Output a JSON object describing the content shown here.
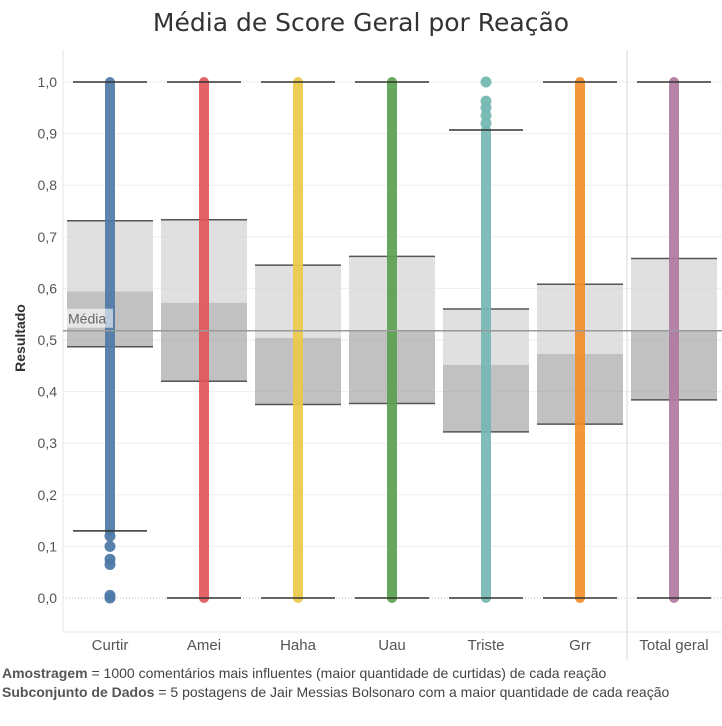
{
  "chart_data": {
    "type": "box",
    "title": "Média de Score Geral por Reação",
    "ylabel": "Resultado",
    "xlabel": "",
    "ylim": [
      0,
      1
    ],
    "y_ticks": [
      "0,0",
      "0,1",
      "0,2",
      "0,3",
      "0,4",
      "0,5",
      "0,6",
      "0,7",
      "0,8",
      "0,9",
      "1,0"
    ],
    "reference_line": {
      "label": "Média",
      "value": 0.518
    },
    "grid": true,
    "categories": [
      {
        "name": "Curtir",
        "color": "#4e79a7",
        "whisker_low": 0.13,
        "q1": 0.487,
        "median": 0.594,
        "q3": 0.731,
        "whisker_high": 1.0,
        "outliers": [
          0.0,
          0.005,
          0.065,
          0.075,
          0.1,
          0.12
        ]
      },
      {
        "name": "Amei",
        "color": "#e15759",
        "whisker_low": 0.0,
        "q1": 0.42,
        "median": 0.572,
        "q3": 0.733,
        "whisker_high": 1.0,
        "outliers": []
      },
      {
        "name": "Haha",
        "color": "#edc948",
        "whisker_low": 0.0,
        "q1": 0.375,
        "median": 0.504,
        "q3": 0.645,
        "whisker_high": 1.0,
        "outliers": []
      },
      {
        "name": "Uau",
        "color": "#59a14f",
        "whisker_low": 0.0,
        "q1": 0.377,
        "median": 0.517,
        "q3": 0.662,
        "whisker_high": 1.0,
        "outliers": []
      },
      {
        "name": "Triste",
        "color": "#76b7b2",
        "whisker_low": 0.0,
        "q1": 0.322,
        "median": 0.452,
        "q3": 0.56,
        "whisker_high": 0.907,
        "outliers": [
          0.92,
          0.935,
          0.95,
          0.963,
          1.0
        ]
      },
      {
        "name": "Grr",
        "color": "#f28e2b",
        "whisker_low": 0.0,
        "q1": 0.337,
        "median": 0.473,
        "q3": 0.608,
        "whisker_high": 1.0,
        "outliers": []
      },
      {
        "name": "Total geral",
        "color": "#b07aa1",
        "whisker_low": 0.0,
        "q1": 0.384,
        "median": 0.518,
        "q3": 0.658,
        "whisker_high": 1.0,
        "outliers": []
      }
    ]
  },
  "footer": {
    "line1_bold": "Amostragem",
    "line1_rest": " = 1000 comentários mais influentes (maior quantidade de curtidas) de cada reação",
    "line2_bold": "Subconjunto de Dados",
    "line2_rest": " = 5 postagens de Jair Messias Bolsonaro com a maior quantidade de cada reação"
  }
}
